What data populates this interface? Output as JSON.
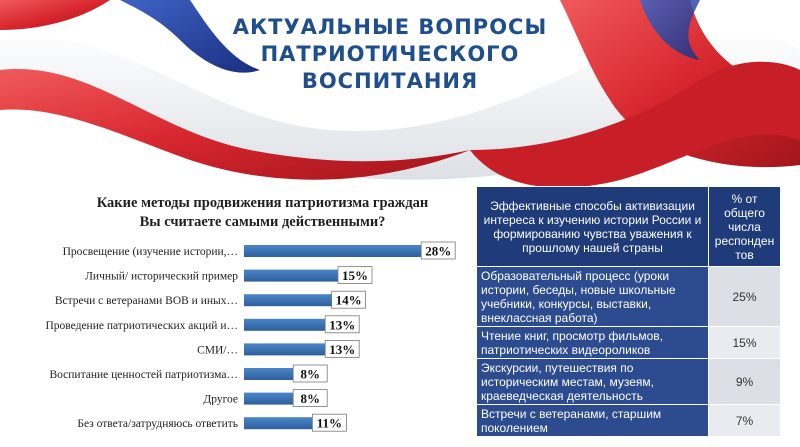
{
  "title": {
    "line1": "АКТУАЛЬНЫЕ ВОПРОСЫ",
    "line2": "ПАТРИОТИЧЕСКОГО",
    "line3": "ВОСПИТАНИЯ"
  },
  "colors": {
    "bar": "#4a86c8",
    "bar_dark": "#2e5f9e",
    "title": "#1f4e8c",
    "table_header": "#1f3b7a",
    "table_method": "#2d4b8f",
    "table_pct": "#dcdfe6",
    "ribbon_red": "#d7262e",
    "ribbon_blue": "#1f3f9a"
  },
  "chart_data": {
    "type": "bar",
    "orientation": "horizontal",
    "title": "Какие методы продвижения патриотизма граждан Вы считаете самыми действенными?",
    "categories": [
      "Просвещение (изучение истории,…",
      "Личный/ исторический пример",
      "Встречи с ветеранами ВОВ и иных…",
      "Проведение патриотических акций и…",
      "СМИ/…",
      "Воспитание ценностей патриотизма…",
      "Другое",
      "Без ответа/затрудняюсь ответить"
    ],
    "values": [
      28,
      15,
      14,
      13,
      13,
      8,
      8,
      11
    ],
    "value_labels": [
      "28%",
      "15%",
      "14%",
      "13%",
      "13%",
      "8%",
      "8%",
      "11%"
    ],
    "unit": "%",
    "xlim": [
      0,
      30
    ],
    "grid": false,
    "legend": "none"
  },
  "table": {
    "header_method": "Эффективные способы активизации интереса к изучению истории России и формированию чувства уважения к прошлому нашей страны",
    "header_pct": "% от общего числа респонден тов",
    "rows": [
      {
        "method": "Образовательный процесс (уроки истории, беседы, новые школьные учебники, конкурсы, выставки, внеклассная работа)",
        "pct": "25%"
      },
      {
        "method": "Чтение книг, просмотр фильмов, патриотических видеороликов",
        "pct": "15%"
      },
      {
        "method": "Экскурсии, путешествия по историческим местам, музеям, краеведческая деятельность",
        "pct": "9%"
      },
      {
        "method": "Встречи с ветеранами, старшим поколением",
        "pct": "7%"
      }
    ]
  }
}
